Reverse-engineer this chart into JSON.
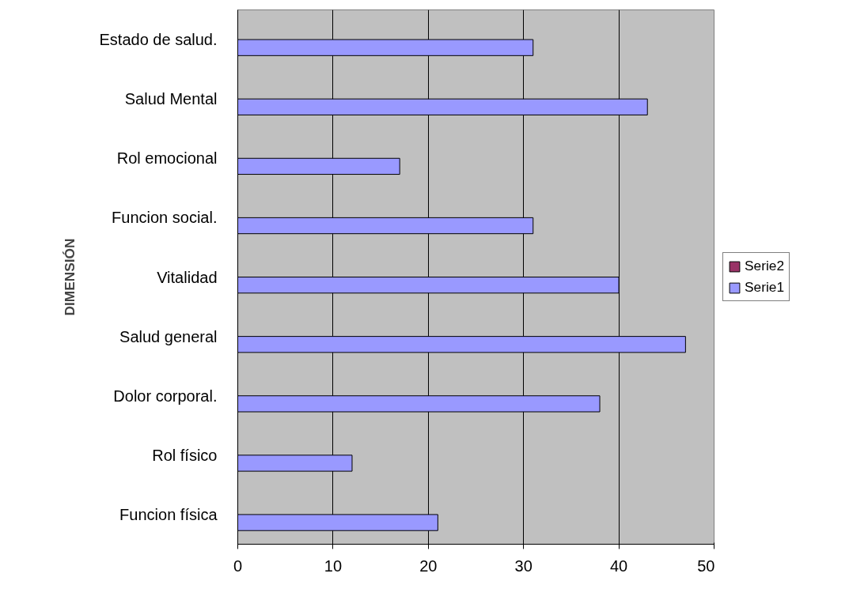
{
  "chart_data": {
    "type": "bar",
    "orientation": "horizontal",
    "ylabel": "DIMENSIÓN",
    "categories": [
      "Estado de salud.",
      "Salud Mental",
      "Rol emocional",
      "Funcion social.",
      "Vitalidad",
      "Salud general",
      "Dolor corporal.",
      "Rol físico",
      "Funcion física"
    ],
    "series": [
      {
        "name": "Serie1",
        "color": "#9999ff",
        "values": [
          31,
          43,
          17,
          31,
          40,
          47,
          38,
          12,
          21
        ]
      },
      {
        "name": "Serie2",
        "color": "#993366",
        "values": [
          null,
          null,
          null,
          null,
          null,
          null,
          null,
          null,
          null
        ]
      }
    ],
    "xlim": [
      0,
      50
    ],
    "xticks": [
      0,
      10,
      20,
      30,
      40,
      50
    ],
    "grid": "x",
    "legend": "right"
  }
}
